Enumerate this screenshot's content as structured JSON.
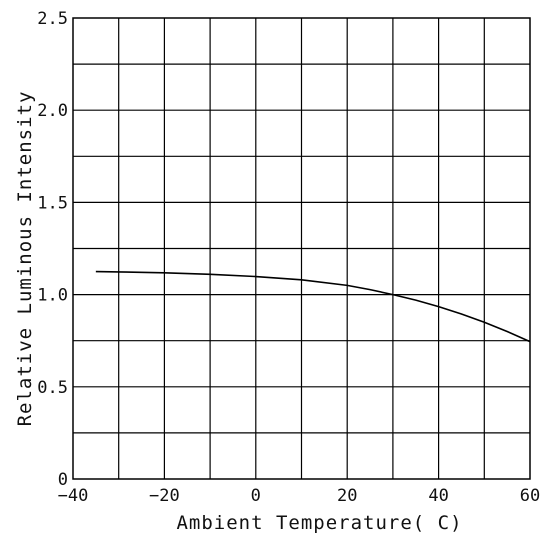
{
  "chart_data": {
    "type": "line",
    "title": "",
    "xlabel": "Ambient Temperature( C)",
    "ylabel": "Relative Luminous Intensity",
    "xlim": [
      -40,
      60
    ],
    "ylim": [
      0,
      2.5
    ],
    "grid": true,
    "x_ticks": [
      {
        "value": -40,
        "label": "−40"
      },
      {
        "value": -20,
        "label": "−20"
      },
      {
        "value": 0,
        "label": "0"
      },
      {
        "value": 20,
        "label": "20"
      },
      {
        "value": 40,
        "label": "40"
      },
      {
        "value": 60,
        "label": "60"
      }
    ],
    "y_ticks": [
      {
        "value": 0,
        "label": "0"
      },
      {
        "value": 0.5,
        "label": "0.5"
      },
      {
        "value": 1.0,
        "label": "1.0"
      },
      {
        "value": 1.5,
        "label": "1.5"
      },
      {
        "value": 2.0,
        "label": "2.0"
      },
      {
        "value": 2.5,
        "label": "2.5"
      }
    ],
    "x_grid_step": 10,
    "y_grid_step": 0.25,
    "series": [
      {
        "x": [
          -35,
          -30,
          -20,
          -10,
          0,
          10,
          20,
          25,
          30,
          35,
          40,
          45,
          50,
          55,
          60
        ],
        "y": [
          1.125,
          1.123,
          1.118,
          1.11,
          1.098,
          1.08,
          1.05,
          1.027,
          1.0,
          0.97,
          0.935,
          0.895,
          0.85,
          0.8,
          0.745
        ]
      }
    ],
    "colors": {
      "line": "#000000",
      "grid": "#000000",
      "text": "#111111"
    }
  }
}
